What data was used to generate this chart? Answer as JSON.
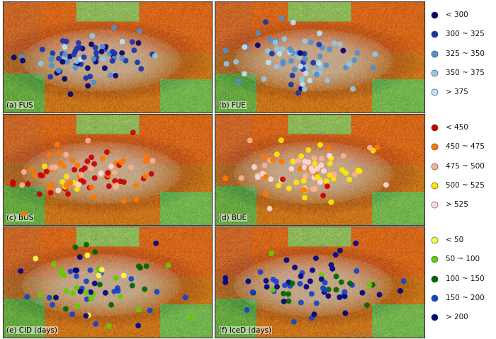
{
  "panels": [
    {
      "label": "(a) FUS",
      "row": 0,
      "col": 0
    },
    {
      "label": "(b) FUE",
      "row": 0,
      "col": 1
    },
    {
      "label": "(c) BUS",
      "row": 1,
      "col": 0
    },
    {
      "label": "(d) BUE",
      "row": 1,
      "col": 1
    },
    {
      "label": "(e) CID (days)",
      "row": 2,
      "col": 0
    },
    {
      "label": "(f) IceD (days)",
      "row": 2,
      "col": 1
    }
  ],
  "legend_sets": [
    {
      "labels": [
        "< 300",
        "300 ~ 325",
        "325 ~ 350",
        "350 ~ 375",
        "> 375"
      ],
      "colors": [
        "#08006E",
        "#1535B0",
        "#5090D0",
        "#90C8E8",
        "#B8E4F8"
      ]
    },
    {
      "labels": [
        "< 450",
        "450 ~ 475",
        "475 ~ 500",
        "500 ~ 525",
        "> 525"
      ],
      "colors": [
        "#CC0000",
        "#FF7700",
        "#FFB090",
        "#FFE800",
        "#FFD8D8"
      ]
    },
    {
      "labels": [
        "< 50",
        "50 ~ 100",
        "100 ~ 150",
        "150 ~ 200",
        "> 200"
      ],
      "colors": [
        "#FFFF44",
        "#66CC00",
        "#006600",
        "#1144CC",
        "#000088"
      ]
    }
  ],
  "dot_size": 32,
  "label_fontsize": 7.5,
  "legend_fontsize": 7.5,
  "fig_bg": "#FFFFFF"
}
